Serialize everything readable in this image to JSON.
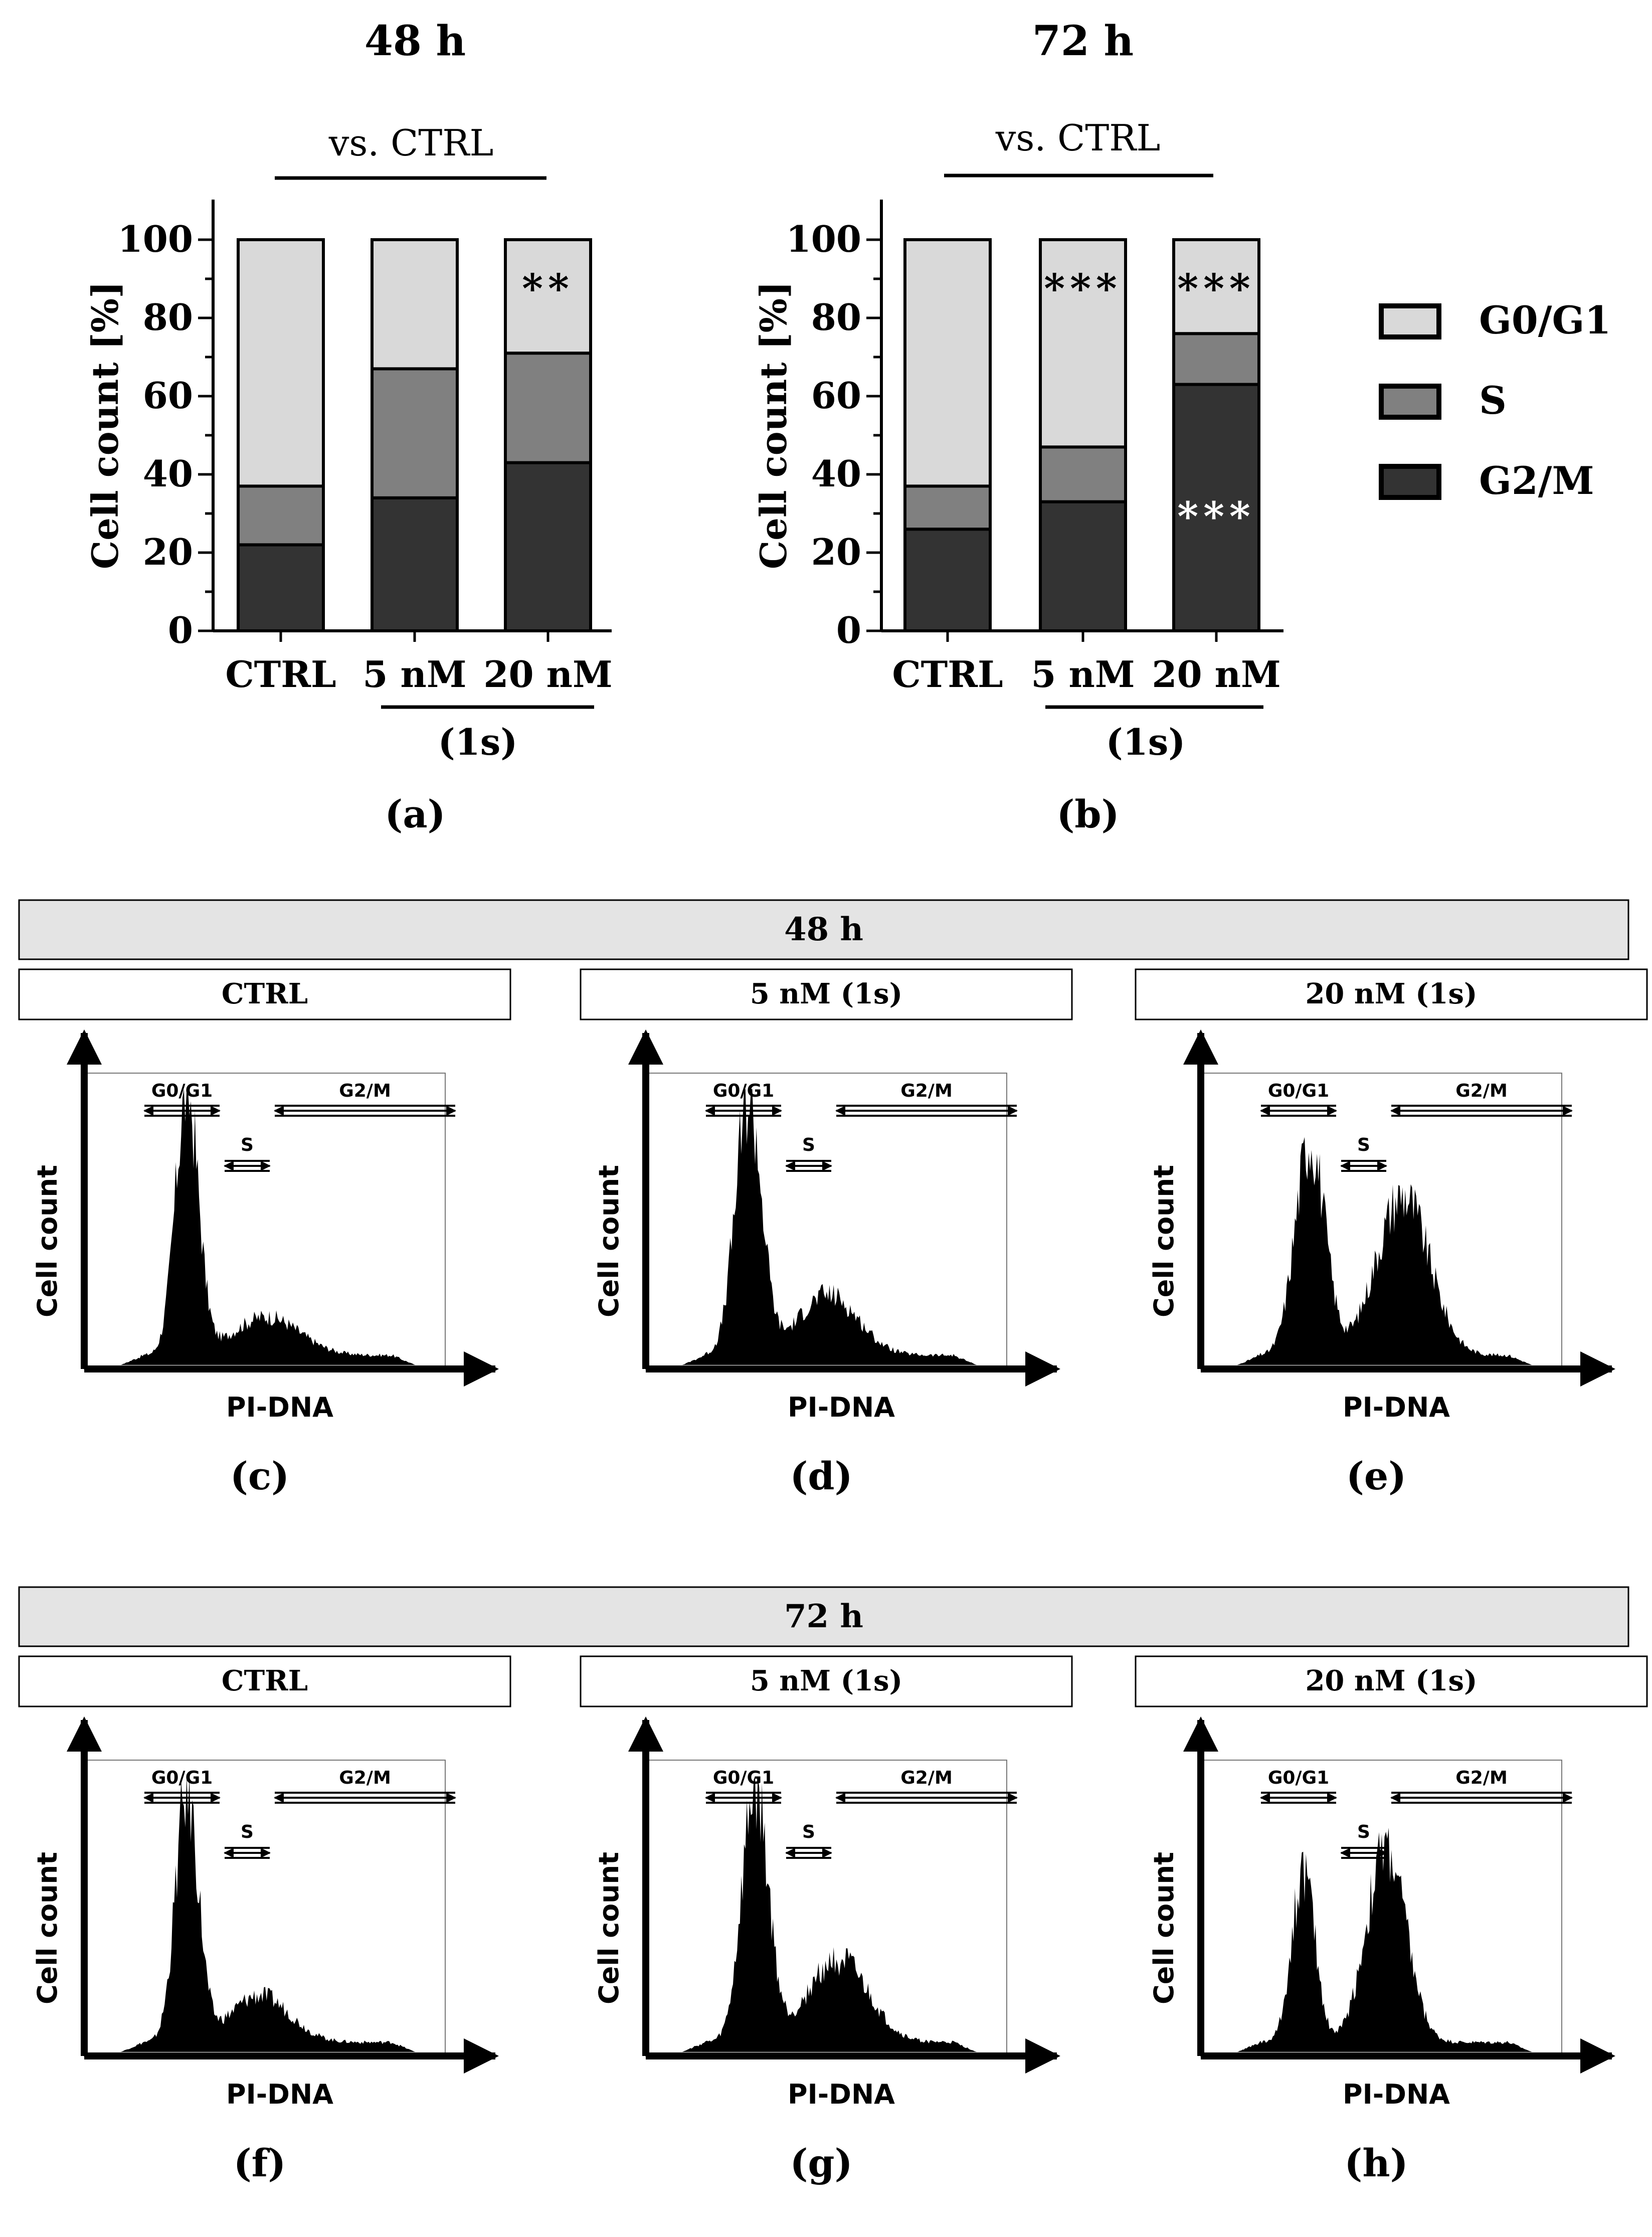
{
  "colors": {
    "g0g1": "#d9d9d9",
    "s": "#808080",
    "g2m": "#333333",
    "hist": "#000000",
    "banner": "#e4e4e4"
  },
  "chart_data": [
    {
      "id": "a",
      "type": "bar",
      "stacked": true,
      "title": "48 h",
      "comparison_label": "vs. CTRL",
      "panel_label": "(a)",
      "ylabel": "Cell count [%]",
      "ylim": [
        0,
        100
      ],
      "yticks": [
        "0",
        "20",
        "40",
        "60",
        "80",
        "100"
      ],
      "categories": [
        "CTRL",
        "5 nM",
        "20 nM"
      ],
      "group_label": "(1s)",
      "series": [
        {
          "name": "G2/M",
          "values": [
            22,
            34,
            43
          ]
        },
        {
          "name": "S",
          "values": [
            15,
            33,
            28
          ]
        },
        {
          "name": "G0/G1",
          "values": [
            63,
            33,
            29
          ]
        }
      ],
      "annotations": [
        {
          "category": "20 nM",
          "segment": "G0/G1",
          "text": "**",
          "color": "#000000"
        }
      ]
    },
    {
      "id": "b",
      "type": "bar",
      "stacked": true,
      "title": "72 h",
      "comparison_label": "vs. CTRL",
      "panel_label": "(b)",
      "ylabel": "Cell count [%]",
      "ylim": [
        0,
        100
      ],
      "yticks": [
        "0",
        "20",
        "40",
        "60",
        "80",
        "100"
      ],
      "categories": [
        "CTRL",
        "5 nM",
        "20 nM"
      ],
      "group_label": "(1s)",
      "series": [
        {
          "name": "G2/M",
          "values": [
            26,
            33,
            63
          ]
        },
        {
          "name": "S",
          "values": [
            11,
            14,
            13
          ]
        },
        {
          "name": "G0/G1",
          "values": [
            63,
            53,
            24
          ]
        }
      ],
      "annotations": [
        {
          "category": "5 nM",
          "segment": "G0/G1",
          "text": "***",
          "color": "#000000"
        },
        {
          "category": "20 nM",
          "segment": "G0/G1",
          "text": "***",
          "color": "#000000"
        },
        {
          "category": "20 nM",
          "segment": "G2/M",
          "text": "***",
          "color": "#ffffff"
        }
      ]
    },
    {
      "type": "legend",
      "entries": [
        "G0/G1",
        "S",
        "G2/M"
      ]
    }
  ],
  "histogram_sections": [
    {
      "banner": "48 h",
      "panels": [
        {
          "header": "CTRL",
          "label": "(c)",
          "g0g1": "G0/G1",
          "s": "S",
          "g2m": "G2/M",
          "ylabel": "Cell count",
          "xlabel": "PI-DNA",
          "peaks": [
            {
              "center": 0.28,
              "height": 0.95,
              "width": 0.035
            },
            {
              "center": 0.52,
              "height": 0.14,
              "width": 0.1
            }
          ]
        },
        {
          "header": "5 nM (1s)",
          "label": "(d)",
          "g0g1": "G0/G1",
          "s": "S",
          "g2m": "G2/M",
          "ylabel": "Cell count",
          "xlabel": "PI-DNA",
          "peaks": [
            {
              "center": 0.28,
              "height": 0.92,
              "width": 0.04
            },
            {
              "center": 0.52,
              "height": 0.22,
              "width": 0.09
            }
          ]
        },
        {
          "header": "20 nM (1s)",
          "label": "(e)",
          "g0g1": "G0/G1",
          "s": "S",
          "g2m": "G2/M",
          "ylabel": "Cell count",
          "xlabel": "PI-DNA",
          "peaks": [
            {
              "center": 0.3,
              "height": 0.78,
              "width": 0.045
            },
            {
              "center": 0.58,
              "height": 0.58,
              "width": 0.08
            }
          ]
        }
      ]
    },
    {
      "banner": "72 h",
      "panels": [
        {
          "header": "CTRL",
          "label": "(f)",
          "g0g1": "G0/G1",
          "s": "S",
          "g2m": "G2/M",
          "ylabel": "Cell count",
          "xlabel": "PI-DNA",
          "peaks": [
            {
              "center": 0.28,
              "height": 0.9,
              "width": 0.035
            },
            {
              "center": 0.5,
              "height": 0.17,
              "width": 0.09
            }
          ]
        },
        {
          "header": "5 nM (1s)",
          "label": "(g)",
          "g0g1": "G0/G1",
          "s": "S",
          "g2m": "G2/M",
          "ylabel": "Cell count",
          "xlabel": "PI-DNA",
          "peaks": [
            {
              "center": 0.3,
              "height": 0.9,
              "width": 0.04
            },
            {
              "center": 0.55,
              "height": 0.3,
              "width": 0.09
            }
          ]
        },
        {
          "header": "20 nM (1s)",
          "label": "(h)",
          "g0g1": "G0/G1",
          "s": "S",
          "g2m": "G2/M",
          "ylabel": "Cell count",
          "xlabel": "PI-DNA",
          "peaks": [
            {
              "center": 0.28,
              "height": 0.62,
              "width": 0.035
            },
            {
              "center": 0.53,
              "height": 0.7,
              "width": 0.06
            }
          ]
        }
      ]
    }
  ]
}
